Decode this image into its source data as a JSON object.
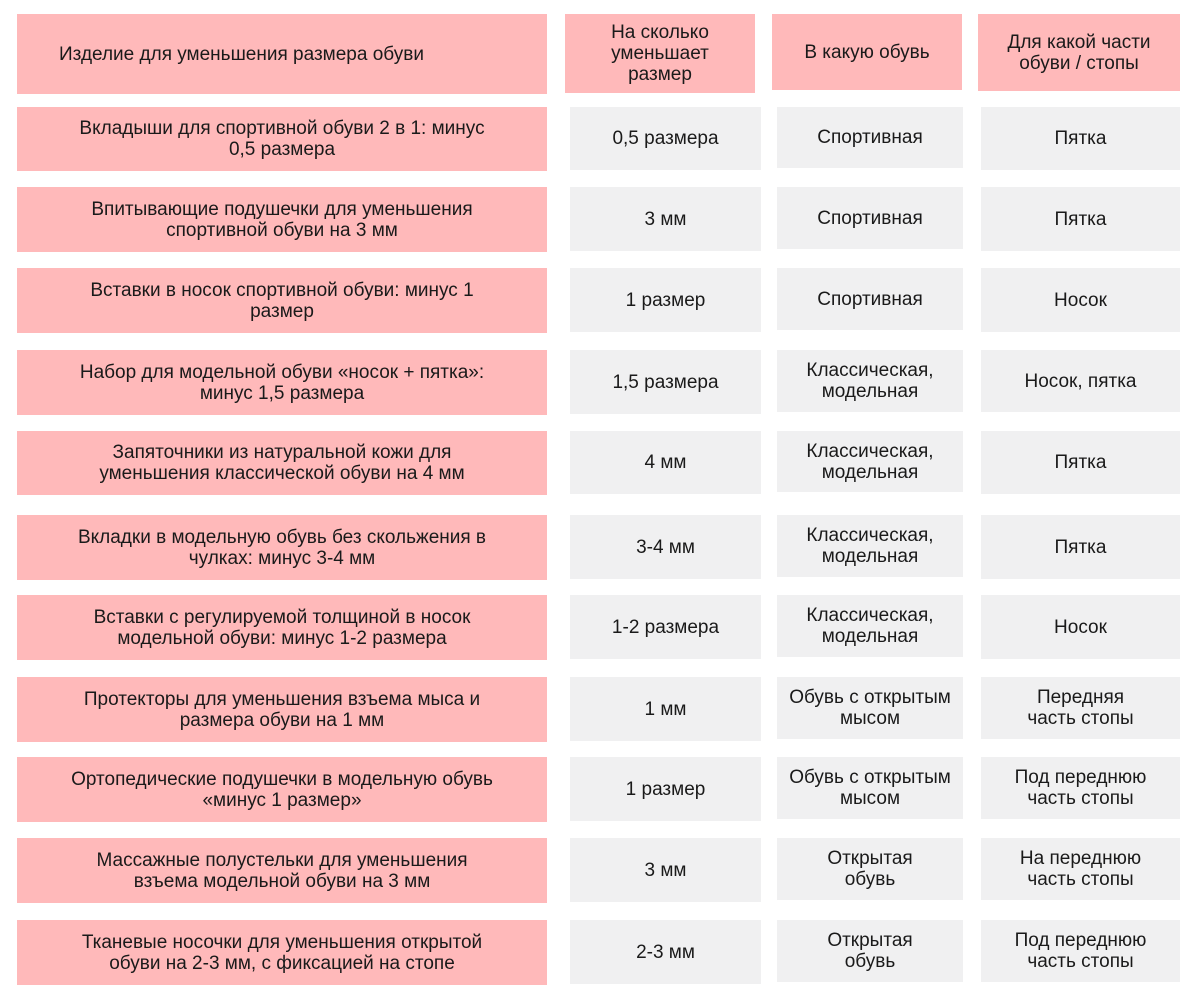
{
  "header": {
    "product": "Изделие для уменьшения размера обуви",
    "reduction": "На сколько\nуменьшает\nразмер",
    "shoe_type": "В какую обувь",
    "foot_part": "Для какой части\nобуви / стопы"
  },
  "rows": [
    {
      "product": "Вкладыши для спортивной обуви 2 в 1: минус\n0,5 размера",
      "reduction": "0,5 размера",
      "shoe_type": "Спортивная",
      "foot_part": "Пятка"
    },
    {
      "product": "Впитывающие подушечки для уменьшения\nспортивной обуви на 3 мм",
      "reduction": "3 мм",
      "shoe_type": "Спортивная",
      "foot_part": "Пятка"
    },
    {
      "product": "Вставки в носок спортивной обуви: минус 1\nразмер",
      "reduction": "1 размер",
      "shoe_type": "Спортивная",
      "foot_part": "Носок"
    },
    {
      "product": "Набор для модельной обуви «носок + пятка»:\nминус 1,5  размера",
      "reduction": "1,5 размера",
      "shoe_type": "Классическая,\nмодельная",
      "foot_part": "Носок, пятка"
    },
    {
      "product": "Запяточники из натуральной кожи для\nуменьшения классической обуви на 4 мм",
      "reduction": "4 мм",
      "shoe_type": "Классическая,\nмодельная",
      "foot_part": "Пятка"
    },
    {
      "product": "Вкладки в модельную обувь без скольжения в\nчулках: минус 3-4 мм",
      "reduction": "3-4 мм",
      "shoe_type": "Классическая,\nмодельная",
      "foot_part": "Пятка"
    },
    {
      "product": "Вставки с регулируемой толщиной в носок\nмодельной обуви: минус 1-2 размера",
      "reduction": "1-2 размера",
      "shoe_type": "Классическая,\nмодельная",
      "foot_part": "Носок"
    },
    {
      "product": "Протекторы для уменьшения взъема мыса и\nразмера обуви на 1 мм",
      "reduction": "1 мм",
      "shoe_type": "Обувь с открытым\nмысом",
      "foot_part": "Передняя\nчасть стопы"
    },
    {
      "product": "Ортопедические подушечки в модельную обувь\n«минус 1 размер»",
      "reduction": "1 размер",
      "shoe_type": "Обувь с открытым\nмысом",
      "foot_part": "Под переднюю\nчасть стопы"
    },
    {
      "product": "Массажные полустельки для уменьшения\nвзъема модельной обуви на 3 мм",
      "reduction": "3 мм",
      "shoe_type": "Открытая\nобувь",
      "foot_part": "На переднюю\nчасть стопы"
    },
    {
      "product": "Тканевые носочки для уменьшения открытой\nобуви на 2-3 мм, с фиксацией на стопе",
      "reduction": "2-3 мм",
      "shoe_type": "Открытая\nобувь",
      "foot_part": "Под переднюю\nчасть стопы"
    }
  ]
}
